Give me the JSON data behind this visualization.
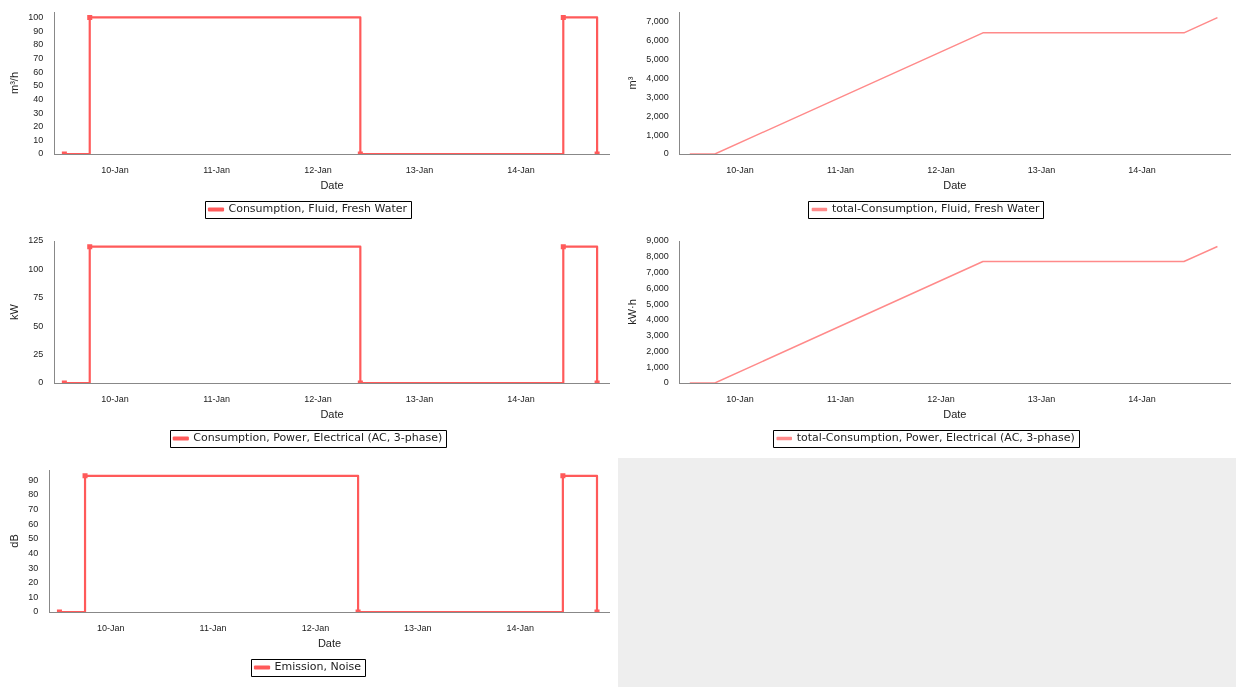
{
  "chart_data": [
    {
      "type": "step",
      "xlabel": "Date",
      "ylabel": "m³/h",
      "x": [
        "--01-09T12:00",
        "--01-09T18:00",
        "--01-12T10:00",
        "--01-14T10:00",
        "--01-14T18:00"
      ],
      "xlim": [
        "--01-09T09:36",
        "--01-14T21:00"
      ],
      "xticks": [
        {
          "value": "--01-10",
          "label": "10-Jan"
        },
        {
          "value": "--01-11",
          "label": "11-Jan"
        },
        {
          "value": "--01-12",
          "label": "12-Jan"
        },
        {
          "value": "--01-13",
          "label": "13-Jan"
        },
        {
          "value": "--01-14",
          "label": "14-Jan"
        }
      ],
      "ylim": [
        0,
        104
      ],
      "yticks": [
        0,
        10,
        20,
        30,
        40,
        50,
        60,
        70,
        80,
        90,
        100
      ],
      "grid": false,
      "legend": "bottom",
      "marker": "square",
      "series": [
        {
          "name": "Consumption, Fluid, Fresh Water",
          "color": "#ff5a5a",
          "values": [
            0,
            100,
            0,
            100,
            0
          ]
        }
      ]
    },
    {
      "type": "line",
      "xlabel": "Date",
      "ylabel": "m³",
      "x": [
        "--01-09T12:00",
        "--01-09T18:00",
        "--01-12T10:00",
        "--01-14T10:00",
        "--01-14T18:00"
      ],
      "xlim": [
        "--01-09T09:36",
        "--01-14T21:00"
      ],
      "xticks": [
        {
          "value": "--01-10",
          "label": "10-Jan"
        },
        {
          "value": "--01-11",
          "label": "11-Jan"
        },
        {
          "value": "--01-12",
          "label": "12-Jan"
        },
        {
          "value": "--01-13",
          "label": "13-Jan"
        },
        {
          "value": "--01-14",
          "label": "14-Jan"
        }
      ],
      "ylim": [
        0,
        7500
      ],
      "yticks": [
        0,
        {
          "value": 1000,
          "label": "1,000"
        },
        {
          "value": 2000,
          "label": "2,000"
        },
        {
          "value": 3000,
          "label": "3,000"
        },
        {
          "value": 4000,
          "label": "4,000"
        },
        {
          "value": 5000,
          "label": "5,000"
        },
        {
          "value": 6000,
          "label": "6,000"
        },
        {
          "value": 7000,
          "label": "7,000"
        }
      ],
      "grid": false,
      "legend": "bottom",
      "marker": "none",
      "series": [
        {
          "name": "total-Consumption, Fluid, Fresh Water",
          "color": "#ff8a8a",
          "values": [
            0,
            0,
            6400,
            6400,
            7200
          ]
        }
      ]
    },
    {
      "type": "step",
      "xlabel": "Date",
      "ylabel": "kW",
      "x": [
        "--01-09T12:00",
        "--01-09T18:00",
        "--01-12T10:00",
        "--01-14T10:00",
        "--01-14T18:00"
      ],
      "xlim": [
        "--01-09T09:36",
        "--01-14T21:00"
      ],
      "xticks": [
        {
          "value": "--01-10",
          "label": "10-Jan"
        },
        {
          "value": "--01-11",
          "label": "11-Jan"
        },
        {
          "value": "--01-12",
          "label": "12-Jan"
        },
        {
          "value": "--01-13",
          "label": "13-Jan"
        },
        {
          "value": "--01-14",
          "label": "14-Jan"
        }
      ],
      "ylim": [
        0,
        125
      ],
      "yticks": [
        0,
        25,
        50,
        75,
        100,
        125
      ],
      "grid": false,
      "legend": "bottom",
      "marker": "square",
      "series": [
        {
          "name": "Consumption, Power, Electrical (AC, 3-phase)",
          "color": "#ff5a5a",
          "values": [
            0,
            120,
            0,
            120,
            0
          ]
        }
      ]
    },
    {
      "type": "line",
      "xlabel": "Date",
      "ylabel": "kW·h",
      "x": [
        "--01-09T12:00",
        "--01-09T18:00",
        "--01-12T10:00",
        "--01-14T10:00",
        "--01-14T18:00"
      ],
      "xlim": [
        "--01-09T09:36",
        "--01-14T21:00"
      ],
      "xticks": [
        {
          "value": "--01-10",
          "label": "10-Jan"
        },
        {
          "value": "--01-11",
          "label": "11-Jan"
        },
        {
          "value": "--01-12",
          "label": "12-Jan"
        },
        {
          "value": "--01-13",
          "label": "13-Jan"
        },
        {
          "value": "--01-14",
          "label": "14-Jan"
        }
      ],
      "ylim": [
        0,
        9000
      ],
      "yticks": [
        0,
        {
          "value": 1000,
          "label": "1,000"
        },
        {
          "value": 2000,
          "label": "2,000"
        },
        {
          "value": 3000,
          "label": "3,000"
        },
        {
          "value": 4000,
          "label": "4,000"
        },
        {
          "value": 5000,
          "label": "5,000"
        },
        {
          "value": 6000,
          "label": "6,000"
        },
        {
          "value": 7000,
          "label": "7,000"
        },
        {
          "value": 8000,
          "label": "8,000"
        },
        {
          "value": 9000,
          "label": "9,000"
        }
      ],
      "grid": false,
      "legend": "bottom",
      "marker": "none",
      "series": [
        {
          "name": "total-Consumption, Power, Electrical (AC, 3-phase)",
          "color": "#ff8a8a",
          "values": [
            0,
            0,
            7700,
            7700,
            8650
          ]
        }
      ]
    },
    {
      "type": "step",
      "xlabel": "Date",
      "ylabel": "dB",
      "x": [
        "--01-09T12:00",
        "--01-09T18:00",
        "--01-12T10:00",
        "--01-14T10:00",
        "--01-14T18:00"
      ],
      "xlim": [
        "--01-09T09:36",
        "--01-14T21:00"
      ],
      "xticks": [
        {
          "value": "--01-10",
          "label": "10-Jan"
        },
        {
          "value": "--01-11",
          "label": "11-Jan"
        },
        {
          "value": "--01-12",
          "label": "12-Jan"
        },
        {
          "value": "--01-13",
          "label": "13-Jan"
        },
        {
          "value": "--01-14",
          "label": "14-Jan"
        }
      ],
      "ylim": [
        0,
        97
      ],
      "yticks": [
        0,
        10,
        20,
        30,
        40,
        50,
        60,
        70,
        80,
        90
      ],
      "grid": false,
      "legend": "bottom",
      "marker": "square",
      "series": [
        {
          "name": "Emission, Noise",
          "color": "#ff5a5a",
          "values": [
            0,
            93,
            0,
            93,
            0
          ]
        }
      ]
    }
  ]
}
